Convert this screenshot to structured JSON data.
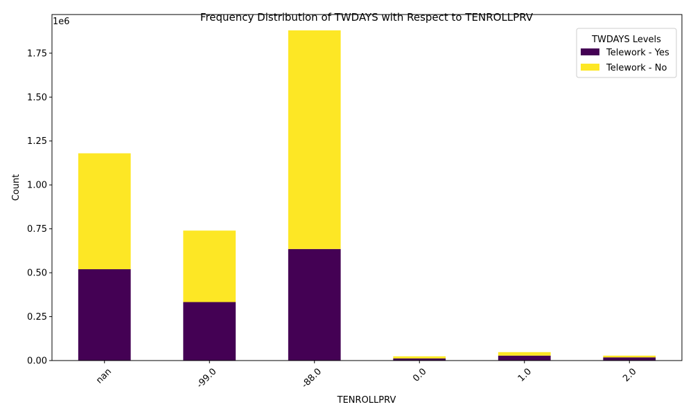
{
  "chart_data": {
    "type": "bar",
    "stacked": true,
    "title": "Frequency Distribution of TWDAYS with Respect to TENROLLPRV",
    "xlabel": "TENROLLPRV",
    "ylabel": "Count",
    "y_scale_label": "1e6",
    "categories": [
      "nan",
      "-99.0",
      "-88.0",
      "0.0",
      "1.0",
      "2.0"
    ],
    "series": [
      {
        "name": "Telework - Yes",
        "color": "#440154",
        "values": [
          520000,
          333000,
          635000,
          12000,
          28000,
          18000
        ]
      },
      {
        "name": "Telework - No",
        "color": "#fde725",
        "values": [
          660000,
          407000,
          1245000,
          12000,
          20000,
          10000
        ]
      }
    ],
    "ylim": [
      0,
      1970000
    ],
    "yticks": [
      0,
      250000,
      500000,
      750000,
      1000000,
      1250000,
      1500000,
      1750000
    ],
    "ytick_labels": [
      "0.00",
      "0.25",
      "0.50",
      "0.75",
      "1.00",
      "1.25",
      "1.50",
      "1.75"
    ],
    "legend": {
      "title": "TWDAYS Levels",
      "placement": "top-right"
    },
    "grid": false,
    "xtick_rotation": 45
  }
}
